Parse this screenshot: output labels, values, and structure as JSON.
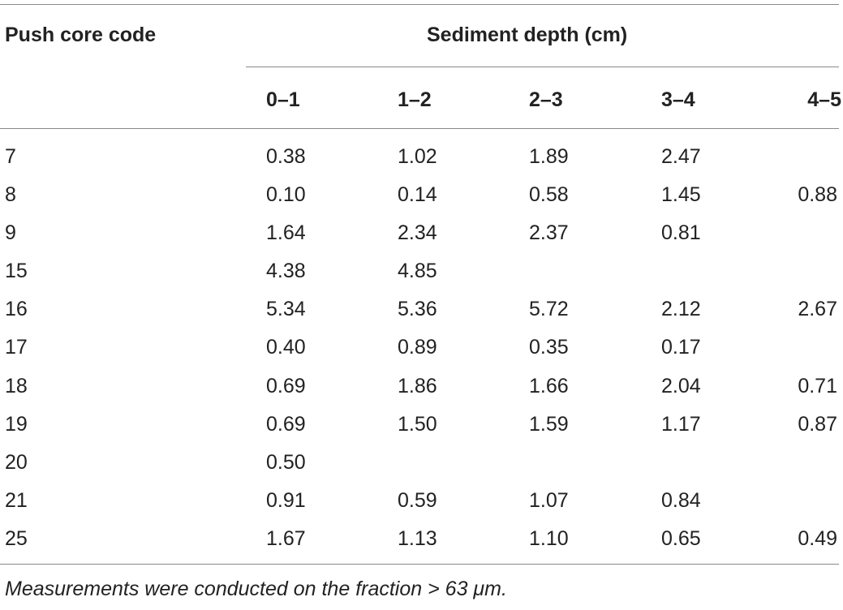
{
  "table": {
    "code_header": "Push core code",
    "group_header": "Sediment depth (cm)",
    "depth_columns": [
      "0–1",
      "1–2",
      "2–3",
      "3–4",
      "4–5"
    ],
    "rows": [
      {
        "code": "7",
        "values": [
          "0.38",
          "1.02",
          "1.89",
          "2.47",
          ""
        ]
      },
      {
        "code": "8",
        "values": [
          "0.10",
          "0.14",
          "0.58",
          "1.45",
          "0.88"
        ]
      },
      {
        "code": "9",
        "values": [
          "1.64",
          "2.34",
          "2.37",
          "0.81",
          ""
        ]
      },
      {
        "code": "15",
        "values": [
          "4.38",
          "4.85",
          "",
          "",
          ""
        ]
      },
      {
        "code": "16",
        "values": [
          "5.34",
          "5.36",
          "5.72",
          "2.12",
          "2.67"
        ]
      },
      {
        "code": "17",
        "values": [
          "0.40",
          "0.89",
          "0.35",
          "0.17",
          ""
        ]
      },
      {
        "code": "18",
        "values": [
          "0.69",
          "1.86",
          "1.66",
          "2.04",
          "0.71"
        ]
      },
      {
        "code": "19",
        "values": [
          "0.69",
          "1.50",
          "1.59",
          "1.17",
          "0.87"
        ]
      },
      {
        "code": "20",
        "values": [
          "0.50",
          "",
          "",
          "",
          ""
        ]
      },
      {
        "code": "21",
        "values": [
          "0.91",
          "0.59",
          "1.07",
          "0.84",
          ""
        ]
      },
      {
        "code": "25",
        "values": [
          "1.67",
          "1.13",
          "1.10",
          "0.65",
          "0.49"
        ]
      }
    ],
    "footnote": "Measurements were conducted on the fraction > 63 μm."
  }
}
